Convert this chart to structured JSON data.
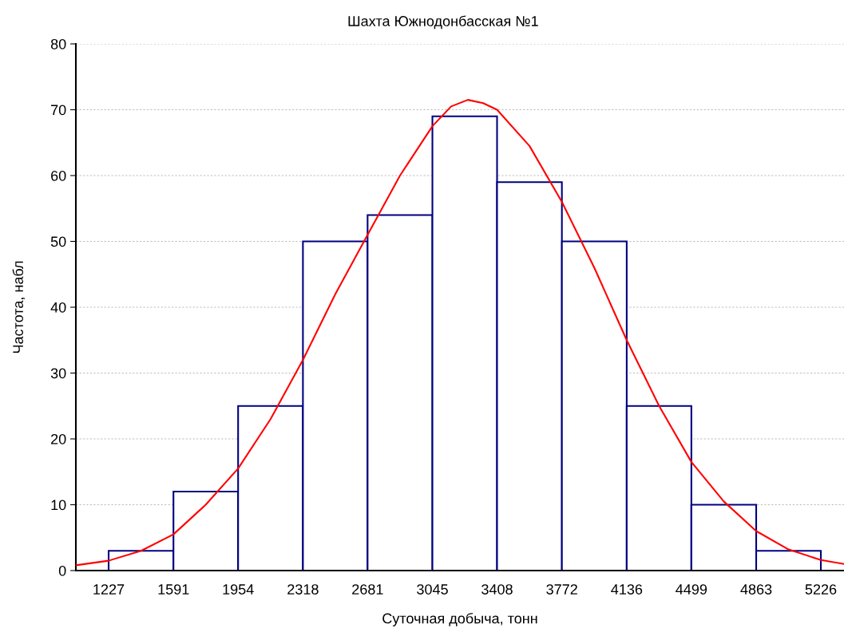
{
  "chart_data": {
    "type": "histogram",
    "title": "Шахта Южнодонбасская №1",
    "xlabel": "Суточная добыча, тонн",
    "ylabel": "Частота, набл",
    "bins": [
      1227,
      1591,
      1954,
      2318,
      2681,
      3045,
      3408,
      3772,
      4136,
      4499,
      4863,
      5226
    ],
    "series": [
      {
        "color": "#000080",
        "values": [
          3,
          12,
          25,
          50,
          54,
          69,
          59,
          50,
          25,
          10,
          3
        ]
      },
      {
        "type": "line",
        "color": "#ff0000",
        "x": [
          1043,
          1227,
          1409,
          1591,
          1772,
          1954,
          2136,
          2318,
          2500,
          2681,
          2863,
          3045,
          3150,
          3244,
          3330,
          3408,
          3590,
          3772,
          3954,
          4136,
          4318,
          4499,
          4681,
          4863,
          5045,
          5226,
          5356
        ],
        "values": [
          0.8,
          1.5,
          3,
          5.5,
          10,
          15.5,
          23,
          32,
          42,
          51,
          60,
          67.5,
          70.5,
          71.5,
          71,
          70,
          64.5,
          56,
          46,
          35,
          25,
          16.5,
          10.5,
          6,
          3.2,
          1.6,
          1
        ]
      }
    ],
    "xlim": [
      1043,
      5356
    ],
    "ylim": [
      0,
      80
    ],
    "xticks": [
      1227,
      1591,
      1954,
      2318,
      2681,
      3045,
      3408,
      3772,
      4136,
      4499,
      4863,
      5226
    ],
    "yticks": [
      0,
      10,
      20,
      30,
      40,
      50,
      60,
      70,
      80
    ],
    "grid": "y",
    "marker": "none",
    "line_style": "solid"
  }
}
